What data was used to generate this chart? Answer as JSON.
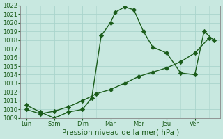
{
  "title": "",
  "xlabel": "Pression niveau de la mer( hPa )",
  "ylabel": "",
  "bg_color": "#c8e8e0",
  "grid_color": "#aad4cc",
  "line_color": "#1a5c1a",
  "ylim": [
    1009,
    1022
  ],
  "yticks": [
    1009,
    1010,
    1011,
    1012,
    1013,
    1014,
    1015,
    1016,
    1017,
    1018,
    1019,
    1020,
    1021,
    1022
  ],
  "x_labels": [
    "Lun",
    "Sam",
    "Dim",
    "Mar",
    "Mer",
    "Jeu",
    "Ven"
  ],
  "x_positions": [
    0,
    1,
    2,
    3,
    4,
    5,
    6
  ],
  "line1_x": [
    0,
    0.5,
    1.0,
    1.5,
    2.0,
    2.33,
    2.67,
    3.0,
    3.17,
    3.5,
    3.83,
    4.17,
    4.5,
    5.0,
    5.5,
    6.0,
    6.33,
    6.67
  ],
  "line1_y": [
    1010.5,
    1009.7,
    1009.0,
    1009.7,
    1010.0,
    1011.3,
    1018.5,
    1020.0,
    1021.2,
    1021.8,
    1021.5,
    1019.0,
    1017.2,
    1016.5,
    1014.2,
    1014.0,
    1019.0,
    1018.0
  ],
  "line2_x": [
    0,
    0.5,
    1.0,
    1.5,
    2.0,
    2.5,
    3.0,
    3.5,
    4.0,
    4.5,
    5.0,
    5.5,
    6.0,
    6.5
  ],
  "line2_y": [
    1010.0,
    1009.5,
    1009.8,
    1010.3,
    1011.0,
    1011.8,
    1012.3,
    1013.0,
    1013.8,
    1014.3,
    1014.8,
    1015.5,
    1016.5,
    1018.2
  ],
  "marker_size": 4,
  "linewidth": 1.0
}
